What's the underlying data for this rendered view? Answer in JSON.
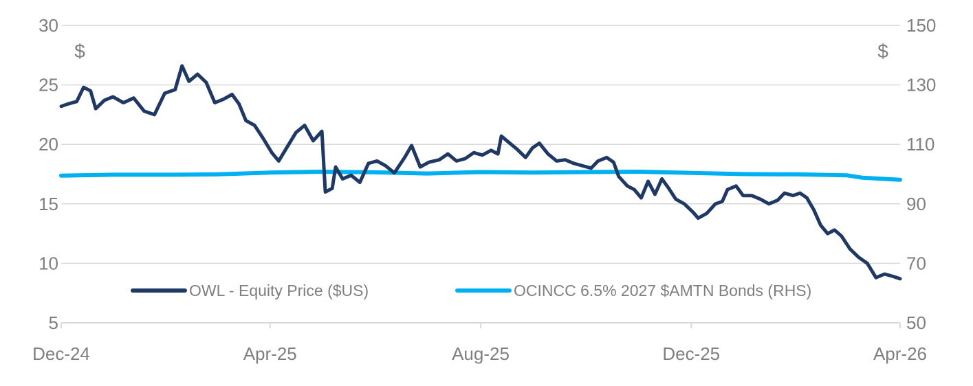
{
  "chart_data": {
    "type": "line",
    "title": "",
    "y_left": {
      "ylim": [
        5,
        30
      ],
      "ticks": [
        5,
        10,
        15,
        20,
        25,
        30
      ],
      "unit": "$"
    },
    "y_right": {
      "ylim": [
        50,
        150
      ],
      "ticks": [
        50,
        70,
        90,
        110,
        130,
        150
      ],
      "unit": "$"
    },
    "x": {
      "range": [
        "2024-12-01",
        "2026-04-01"
      ],
      "ticks": [
        "Dec-24",
        "Apr-25",
        "Aug-25",
        "Dec-25",
        "Apr-26"
      ]
    },
    "grid": true,
    "legend_placement": "bottom-center",
    "series": [
      {
        "name": "OWL - Equity Price ($US)",
        "axis": "left",
        "color": "#1f3864",
        "points": [
          [
            "2024-12-01",
            23.2
          ],
          [
            "2024-12-05",
            23.4
          ],
          [
            "2024-12-10",
            23.6
          ],
          [
            "2024-12-14",
            24.8
          ],
          [
            "2024-12-18",
            24.5
          ],
          [
            "2024-12-21",
            23.0
          ],
          [
            "2024-12-26",
            23.7
          ],
          [
            "2024-12-31",
            24.0
          ],
          [
            "2025-01-06",
            23.5
          ],
          [
            "2025-01-12",
            23.9
          ],
          [
            "2025-01-18",
            22.8
          ],
          [
            "2025-01-24",
            22.5
          ],
          [
            "2025-01-30",
            24.3
          ],
          [
            "2025-02-05",
            24.6
          ],
          [
            "2025-02-09",
            26.6
          ],
          [
            "2025-02-13",
            25.3
          ],
          [
            "2025-02-18",
            25.9
          ],
          [
            "2025-02-23",
            25.2
          ],
          [
            "2025-02-28",
            23.5
          ],
          [
            "2025-03-05",
            23.8
          ],
          [
            "2025-03-10",
            24.2
          ],
          [
            "2025-03-14",
            23.4
          ],
          [
            "2025-03-18",
            22.0
          ],
          [
            "2025-03-23",
            21.6
          ],
          [
            "2025-03-28",
            20.5
          ],
          [
            "2025-04-02",
            19.3
          ],
          [
            "2025-04-06",
            18.6
          ],
          [
            "2025-04-11",
            19.8
          ],
          [
            "2025-04-16",
            21.0
          ],
          [
            "2025-04-21",
            21.6
          ],
          [
            "2025-04-26",
            20.3
          ],
          [
            "2025-05-01",
            21.1
          ],
          [
            "2025-05-03",
            16.0
          ],
          [
            "2025-05-07",
            16.3
          ],
          [
            "2025-05-09",
            18.1
          ],
          [
            "2025-05-13",
            17.1
          ],
          [
            "2025-05-18",
            17.4
          ],
          [
            "2025-05-23",
            16.8
          ],
          [
            "2025-05-28",
            18.4
          ],
          [
            "2025-06-02",
            18.6
          ],
          [
            "2025-06-07",
            18.2
          ],
          [
            "2025-06-12",
            17.6
          ],
          [
            "2025-06-18",
            18.9
          ],
          [
            "2025-06-22",
            19.9
          ],
          [
            "2025-06-27",
            18.1
          ],
          [
            "2025-07-02",
            18.5
          ],
          [
            "2025-07-08",
            18.7
          ],
          [
            "2025-07-13",
            19.2
          ],
          [
            "2025-07-18",
            18.6
          ],
          [
            "2025-07-23",
            18.8
          ],
          [
            "2025-07-28",
            19.3
          ],
          [
            "2025-08-02",
            19.1
          ],
          [
            "2025-08-07",
            19.5
          ],
          [
            "2025-08-11",
            19.2
          ],
          [
            "2025-08-13",
            20.7
          ],
          [
            "2025-08-17",
            20.2
          ],
          [
            "2025-08-22",
            19.6
          ],
          [
            "2025-08-27",
            18.9
          ],
          [
            "2025-08-31",
            19.7
          ],
          [
            "2025-09-04",
            20.1
          ],
          [
            "2025-09-09",
            19.2
          ],
          [
            "2025-09-14",
            18.6
          ],
          [
            "2025-09-19",
            18.7
          ],
          [
            "2025-09-24",
            18.4
          ],
          [
            "2025-09-29",
            18.2
          ],
          [
            "2025-10-04",
            18.0
          ],
          [
            "2025-10-08",
            18.6
          ],
          [
            "2025-10-13",
            18.9
          ],
          [
            "2025-10-17",
            18.5
          ],
          [
            "2025-10-20",
            17.3
          ],
          [
            "2025-10-25",
            16.5
          ],
          [
            "2025-10-29",
            16.2
          ],
          [
            "2025-11-02",
            15.5
          ],
          [
            "2025-11-06",
            16.9
          ],
          [
            "2025-11-10",
            15.8
          ],
          [
            "2025-11-14",
            17.1
          ],
          [
            "2025-11-18",
            16.3
          ],
          [
            "2025-11-22",
            15.4
          ],
          [
            "2025-11-27",
            15.0
          ],
          [
            "2025-12-02",
            14.3
          ],
          [
            "2025-12-05",
            13.8
          ],
          [
            "2025-12-10",
            14.2
          ],
          [
            "2025-12-15",
            15.0
          ],
          [
            "2025-12-19",
            15.2
          ],
          [
            "2025-12-22",
            16.2
          ],
          [
            "2025-12-27",
            16.5
          ],
          [
            "2025-12-31",
            15.7
          ],
          [
            "2026-01-05",
            15.7
          ],
          [
            "2026-01-10",
            15.4
          ],
          [
            "2026-01-15",
            15.0
          ],
          [
            "2026-01-20",
            15.3
          ],
          [
            "2026-01-24",
            15.9
          ],
          [
            "2026-01-29",
            15.7
          ],
          [
            "2026-02-02",
            15.9
          ],
          [
            "2026-02-06",
            15.5
          ],
          [
            "2026-02-10",
            14.5
          ],
          [
            "2026-02-14",
            13.2
          ],
          [
            "2026-02-18",
            12.5
          ],
          [
            "2026-02-22",
            12.8
          ],
          [
            "2026-02-26",
            12.3
          ],
          [
            "2026-03-03",
            11.2
          ],
          [
            "2026-03-08",
            10.5
          ],
          [
            "2026-03-13",
            10.0
          ],
          [
            "2026-03-18",
            8.8
          ],
          [
            "2026-03-23",
            9.1
          ],
          [
            "2026-03-28",
            8.9
          ],
          [
            "2026-04-01",
            8.7
          ]
        ]
      },
      {
        "name": "OCINCC 6.5% 2027 $AMTN Bonds (RHS)",
        "axis": "right",
        "color": "#00b0f0",
        "points": [
          [
            "2024-12-01",
            99.5
          ],
          [
            "2025-01-01",
            99.8
          ],
          [
            "2025-02-01",
            99.8
          ],
          [
            "2025-03-01",
            99.9
          ],
          [
            "2025-04-01",
            100.5
          ],
          [
            "2025-05-01",
            100.8
          ],
          [
            "2025-06-01",
            100.6
          ],
          [
            "2025-07-01",
            100.2
          ],
          [
            "2025-08-01",
            100.7
          ],
          [
            "2025-09-01",
            100.5
          ],
          [
            "2025-10-01",
            100.7
          ],
          [
            "2025-11-01",
            100.8
          ],
          [
            "2025-12-01",
            100.4
          ],
          [
            "2026-01-01",
            100.0
          ],
          [
            "2026-02-01",
            99.9
          ],
          [
            "2026-03-01",
            99.6
          ],
          [
            "2026-03-10",
            98.8
          ],
          [
            "2026-04-01",
            98.1
          ]
        ]
      }
    ]
  }
}
